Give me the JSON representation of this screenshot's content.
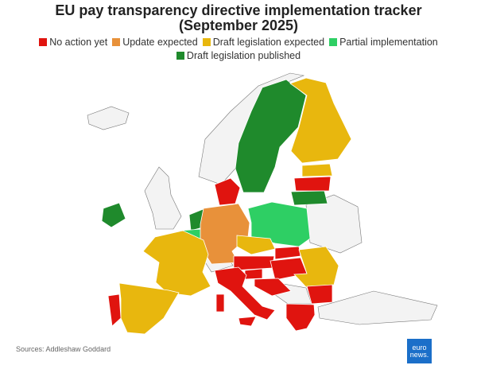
{
  "title": [
    "EU pay transparency directive implementation tracker",
    "(September 2025)"
  ],
  "legend": [
    {
      "label": "No action yet",
      "color": "#e0140f"
    },
    {
      "label": "Update expected",
      "color": "#e8913a"
    },
    {
      "label": "Draft legislation expected",
      "color": "#e8b70e"
    },
    {
      "label": "Partial implementation",
      "color": "#2ecf64"
    },
    {
      "label": "Draft legislation published",
      "color": "#1f8a2c"
    }
  ],
  "source": "Sources: Addleshaw Goddard",
  "logo": [
    "euro",
    "news."
  ]
}
